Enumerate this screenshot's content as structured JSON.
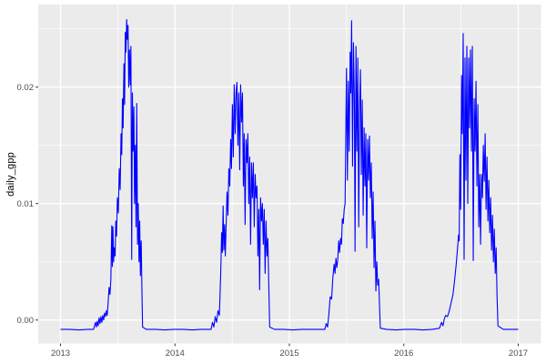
{
  "figure": {
    "background": "#FFFFFF",
    "panel_background": "#EBEBEB",
    "gridline_color": "#FFFFFF",
    "axis_text_color": "#4D4D4D",
    "tick_mark_color": "#333333",
    "axis_title_color": "#000000",
    "line_color": "#0000FF"
  },
  "chart_data": {
    "type": "line",
    "title": "",
    "xlabel": "",
    "ylabel": "daily_gpp",
    "theme": "ggplot2-gray",
    "grid": "major+minor",
    "legend": "none",
    "x_domain": [
      2012.805,
      2017.199
    ],
    "y_domain": [
      -0.002016,
      0.027086
    ],
    "x_ticks": {
      "values": [
        2013,
        2014,
        2015,
        2016,
        2017
      ],
      "labels": [
        "2013",
        "2014",
        "2015",
        "2016",
        "2017"
      ]
    },
    "y_ticks": {
      "values": [
        0.0,
        0.01,
        0.02
      ],
      "labels": [
        "0.00",
        "0.01",
        "0.02"
      ]
    },
    "x_minor_breaks": [
      2013.5,
      2014.5,
      2015.5,
      2016.5
    ],
    "y_minor_breaks": [
      0.005,
      0.015,
      0.025
    ],
    "series": [
      {
        "name": "daily_gpp",
        "color": "#0000FF",
        "points": [
          [
            2013.0,
            -0.0008
          ],
          [
            2013.08,
            -0.0008
          ],
          [
            2013.16,
            -0.00085
          ],
          [
            2013.24,
            -0.0008
          ],
          [
            2013.289,
            -0.0008
          ],
          [
            2013.305,
            -0.0002
          ],
          [
            2013.313,
            -0.0006
          ],
          [
            2013.321,
            -0.0001
          ],
          [
            2013.329,
            -0.0005
          ],
          [
            2013.337,
            0.0002
          ],
          [
            2013.345,
            -0.0003
          ],
          [
            2013.353,
            0.0003
          ],
          [
            2013.361,
            -0.0002
          ],
          [
            2013.369,
            0.0004
          ],
          [
            2013.377,
            0.0
          ],
          [
            2013.385,
            0.0006
          ],
          [
            2013.393,
            0.0003
          ],
          [
            2013.4,
            0.0008
          ],
          [
            2013.408,
            0.0004
          ],
          [
            2013.416,
            0.0015
          ],
          [
            2013.424,
            0.0028
          ],
          [
            2013.432,
            0.0022
          ],
          [
            2013.44,
            0.0035
          ],
          [
            2013.448,
            0.0081
          ],
          [
            2013.453,
            0.0046
          ],
          [
            2013.458,
            0.008
          ],
          [
            2013.464,
            0.005
          ],
          [
            2013.47,
            0.0062
          ],
          [
            2013.477,
            0.0055
          ],
          [
            2013.483,
            0.0085
          ],
          [
            2013.49,
            0.0072
          ],
          [
            2013.497,
            0.0105
          ],
          [
            2013.505,
            0.0092
          ],
          [
            2013.513,
            0.013
          ],
          [
            2013.521,
            0.0112
          ],
          [
            2013.529,
            0.016
          ],
          [
            2013.535,
            0.0142
          ],
          [
            2013.541,
            0.019
          ],
          [
            2013.547,
            0.0165
          ],
          [
            2013.554,
            0.022
          ],
          [
            2013.56,
            0.0185
          ],
          [
            2013.566,
            0.0247
          ],
          [
            2013.572,
            0.023
          ],
          [
            2013.578,
            0.0258
          ],
          [
            2013.584,
            0.0241
          ],
          [
            2013.59,
            0.0253
          ],
          [
            2013.596,
            0.02
          ],
          [
            2013.602,
            0.0232
          ],
          [
            2013.609,
            0.0202
          ],
          [
            2013.615,
            0.0235
          ],
          [
            2013.622,
            0.0052
          ],
          [
            2013.628,
            0.0195
          ],
          [
            2013.634,
            0.0145
          ],
          [
            2013.641,
            0.0183
          ],
          [
            2013.647,
            0.01
          ],
          [
            2013.654,
            0.015
          ],
          [
            2013.66,
            0.008
          ],
          [
            2013.666,
            0.0186
          ],
          [
            2013.673,
            0.0065
          ],
          [
            2013.679,
            0.01
          ],
          [
            2013.686,
            0.005
          ],
          [
            2013.692,
            0.0085
          ],
          [
            2013.698,
            0.0038
          ],
          [
            2013.705,
            0.0068
          ],
          [
            2013.711,
            0.0028
          ],
          [
            2013.717,
            -0.0006
          ],
          [
            2013.75,
            -0.0008
          ],
          [
            2013.83,
            -0.0008
          ],
          [
            2013.91,
            -0.00085
          ],
          [
            2013.99,
            -0.0008
          ],
          [
            2014.07,
            -0.0008
          ],
          [
            2014.15,
            -0.00085
          ],
          [
            2014.23,
            -0.0008
          ],
          [
            2014.3,
            -0.0008
          ],
          [
            2014.316,
            -0.0008
          ],
          [
            2014.328,
            -0.0002
          ],
          [
            2014.34,
            -0.0006
          ],
          [
            2014.352,
            0.0003
          ],
          [
            2014.364,
            -0.0002
          ],
          [
            2014.376,
            0.0008
          ],
          [
            2014.388,
            0.0004
          ],
          [
            2014.4,
            0.004
          ],
          [
            2014.408,
            0.0075
          ],
          [
            2014.414,
            0.0058
          ],
          [
            2014.421,
            0.0098
          ],
          [
            2014.427,
            0.006
          ],
          [
            2014.434,
            0.0082
          ],
          [
            2014.44,
            0.0055
          ],
          [
            2014.447,
            0.008
          ],
          [
            2014.455,
            0.011
          ],
          [
            2014.463,
            0.009
          ],
          [
            2014.471,
            0.013
          ],
          [
            2014.479,
            0.0115
          ],
          [
            2014.487,
            0.0155
          ],
          [
            2014.494,
            0.013
          ],
          [
            2014.502,
            0.0185
          ],
          [
            2014.51,
            0.014
          ],
          [
            2014.518,
            0.0202
          ],
          [
            2014.526,
            0.016
          ],
          [
            2014.534,
            0.0195
          ],
          [
            2014.542,
            0.0204
          ],
          [
            2014.55,
            0.015
          ],
          [
            2014.558,
            0.0195
          ],
          [
            2014.566,
            0.0129
          ],
          [
            2014.574,
            0.0202
          ],
          [
            2014.582,
            0.017
          ],
          [
            2014.59,
            0.0195
          ],
          [
            2014.598,
            0.0115
          ],
          [
            2014.605,
            0.016
          ],
          [
            2014.613,
            0.0082
          ],
          [
            2014.621,
            0.0155
          ],
          [
            2014.629,
            0.0135
          ],
          [
            2014.637,
            0.016
          ],
          [
            2014.645,
            0.01
          ],
          [
            2014.653,
            0.014
          ],
          [
            2014.661,
            0.0065
          ],
          [
            2014.669,
            0.0135
          ],
          [
            2014.677,
            0.0105
          ],
          [
            2014.685,
            0.0135
          ],
          [
            2014.693,
            0.008
          ],
          [
            2014.701,
            0.0125
          ],
          [
            2014.709,
            0.0105
          ],
          [
            2014.717,
            0.0115
          ],
          [
            2014.725,
            0.0055
          ],
          [
            2014.733,
            0.0095
          ],
          [
            2014.74,
            0.0026
          ],
          [
            2014.748,
            0.0105
          ],
          [
            2014.756,
            0.0085
          ],
          [
            2014.764,
            0.01
          ],
          [
            2014.772,
            0.0065
          ],
          [
            2014.78,
            0.0095
          ],
          [
            2014.788,
            0.004
          ],
          [
            2014.796,
            0.0085
          ],
          [
            2014.804,
            0.0055
          ],
          [
            2014.812,
            0.007
          ],
          [
            2014.82,
            0.003
          ],
          [
            2014.828,
            -0.0006
          ],
          [
            2014.87,
            -0.0008
          ],
          [
            2014.95,
            -0.0008
          ],
          [
            2015.03,
            -0.00085
          ],
          [
            2015.11,
            -0.0008
          ],
          [
            2015.19,
            -0.0008
          ],
          [
            2015.27,
            -0.0008
          ],
          [
            2015.31,
            -0.0008
          ],
          [
            2015.322,
            -0.0003
          ],
          [
            2015.334,
            -0.0006
          ],
          [
            2015.345,
            0.0005
          ],
          [
            2015.357,
            0.002
          ],
          [
            2015.369,
            0.0018
          ],
          [
            2015.379,
            0.0035
          ],
          [
            2015.391,
            0.0048
          ],
          [
            2015.399,
            0.004
          ],
          [
            2015.407,
            0.0053
          ],
          [
            2015.415,
            0.0045
          ],
          [
            2015.423,
            0.0052
          ],
          [
            2015.431,
            0.0068
          ],
          [
            2015.439,
            0.0058
          ],
          [
            2015.447,
            0.007
          ],
          [
            2015.455,
            0.0065
          ],
          [
            2015.463,
            0.0087
          ],
          [
            2015.471,
            0.0083
          ],
          [
            2015.479,
            0.0095
          ],
          [
            2015.487,
            0.01
          ],
          [
            2015.499,
            0.0216
          ],
          [
            2015.507,
            0.012
          ],
          [
            2015.515,
            0.0205
          ],
          [
            2015.523,
            0.0145
          ],
          [
            2015.531,
            0.023
          ],
          [
            2015.537,
            0.0195
          ],
          [
            2015.544,
            0.0257
          ],
          [
            2015.552,
            0.0132
          ],
          [
            2015.56,
            0.0238
          ],
          [
            2015.568,
            0.019
          ],
          [
            2015.574,
            0.0059
          ],
          [
            2015.582,
            0.0235
          ],
          [
            2015.59,
            0.0145
          ],
          [
            2015.598,
            0.0225
          ],
          [
            2015.606,
            0.008
          ],
          [
            2015.613,
            0.018
          ],
          [
            2015.621,
            0.0215
          ],
          [
            2015.629,
            0.0125
          ],
          [
            2015.637,
            0.0189
          ],
          [
            2015.645,
            0.009
          ],
          [
            2015.653,
            0.0165
          ],
          [
            2015.661,
            0.0115
          ],
          [
            2015.668,
            0.016
          ],
          [
            2015.676,
            0.0062
          ],
          [
            2015.684,
            0.0155
          ],
          [
            2015.692,
            0.012
          ],
          [
            2015.7,
            0.0158
          ],
          [
            2015.708,
            0.0105
          ],
          [
            2015.716,
            0.0135
          ],
          [
            2015.724,
            0.007
          ],
          [
            2015.732,
            0.011
          ],
          [
            2015.74,
            0.0045
          ],
          [
            2015.748,
            0.0085
          ],
          [
            2015.756,
            0.0025
          ],
          [
            2015.764,
            0.005
          ],
          [
            2015.772,
            0.003
          ],
          [
            2015.78,
            0.0035
          ],
          [
            2015.788,
            0.0012
          ],
          [
            2015.795,
            -0.0007
          ],
          [
            2015.85,
            -0.0008
          ],
          [
            2015.93,
            -0.00085
          ],
          [
            2016.01,
            -0.0008
          ],
          [
            2016.09,
            -0.0008
          ],
          [
            2016.17,
            -0.00085
          ],
          [
            2016.25,
            -0.0008
          ],
          [
            2016.312,
            -0.0007
          ],
          [
            2016.33,
            -0.0002
          ],
          [
            2016.342,
            -0.0005
          ],
          [
            2016.354,
            0.0001
          ],
          [
            2016.366,
            0.0004
          ],
          [
            2016.382,
            0.0003
          ],
          [
            2016.398,
            0.0008
          ],
          [
            2016.414,
            0.0015
          ],
          [
            2016.43,
            0.0022
          ],
          [
            2016.446,
            0.0036
          ],
          [
            2016.458,
            0.0048
          ],
          [
            2016.47,
            0.0062
          ],
          [
            2016.478,
            0.0073
          ],
          [
            2016.484,
            0.0068
          ],
          [
            2016.49,
            0.0142
          ],
          [
            2016.497,
            0.0095
          ],
          [
            2016.505,
            0.021
          ],
          [
            2016.511,
            0.016
          ],
          [
            2016.519,
            0.0246
          ],
          [
            2016.527,
            0.0052
          ],
          [
            2016.535,
            0.0225
          ],
          [
            2016.543,
            0.012
          ],
          [
            2016.551,
            0.0235
          ],
          [
            2016.559,
            0.01
          ],
          [
            2016.567,
            0.0225
          ],
          [
            2016.575,
            0.0165
          ],
          [
            2016.583,
            0.0232
          ],
          [
            2016.591,
            0.0145
          ],
          [
            2016.599,
            0.0235
          ],
          [
            2016.607,
            0.0051
          ],
          [
            2016.615,
            0.019
          ],
          [
            2016.623,
            0.0145
          ],
          [
            2016.631,
            0.0205
          ],
          [
            2016.639,
            0.0115
          ],
          [
            2016.647,
            0.0185
          ],
          [
            2016.655,
            0.008
          ],
          [
            2016.663,
            0.0125
          ],
          [
            2016.671,
            0.0065
          ],
          [
            2016.679,
            0.0125
          ],
          [
            2016.687,
            0.0105
          ],
          [
            2016.695,
            0.015
          ],
          [
            2016.703,
            0.0119
          ],
          [
            2016.711,
            0.016
          ],
          [
            2016.719,
            0.0095
          ],
          [
            2016.727,
            0.014
          ],
          [
            2016.735,
            0.0085
          ],
          [
            2016.743,
            0.012
          ],
          [
            2016.751,
            0.0075
          ],
          [
            2016.759,
            0.0105
          ],
          [
            2016.767,
            0.006
          ],
          [
            2016.775,
            0.009
          ],
          [
            2016.783,
            0.005
          ],
          [
            2016.791,
            0.0078
          ],
          [
            2016.799,
            0.004
          ],
          [
            2016.807,
            0.0062
          ],
          [
            2016.815,
            0.002
          ],
          [
            2016.823,
            -0.0005
          ],
          [
            2016.87,
            -0.0008
          ],
          [
            2016.93,
            -0.0008
          ],
          [
            2017.0,
            -0.0008
          ]
        ]
      }
    ]
  }
}
